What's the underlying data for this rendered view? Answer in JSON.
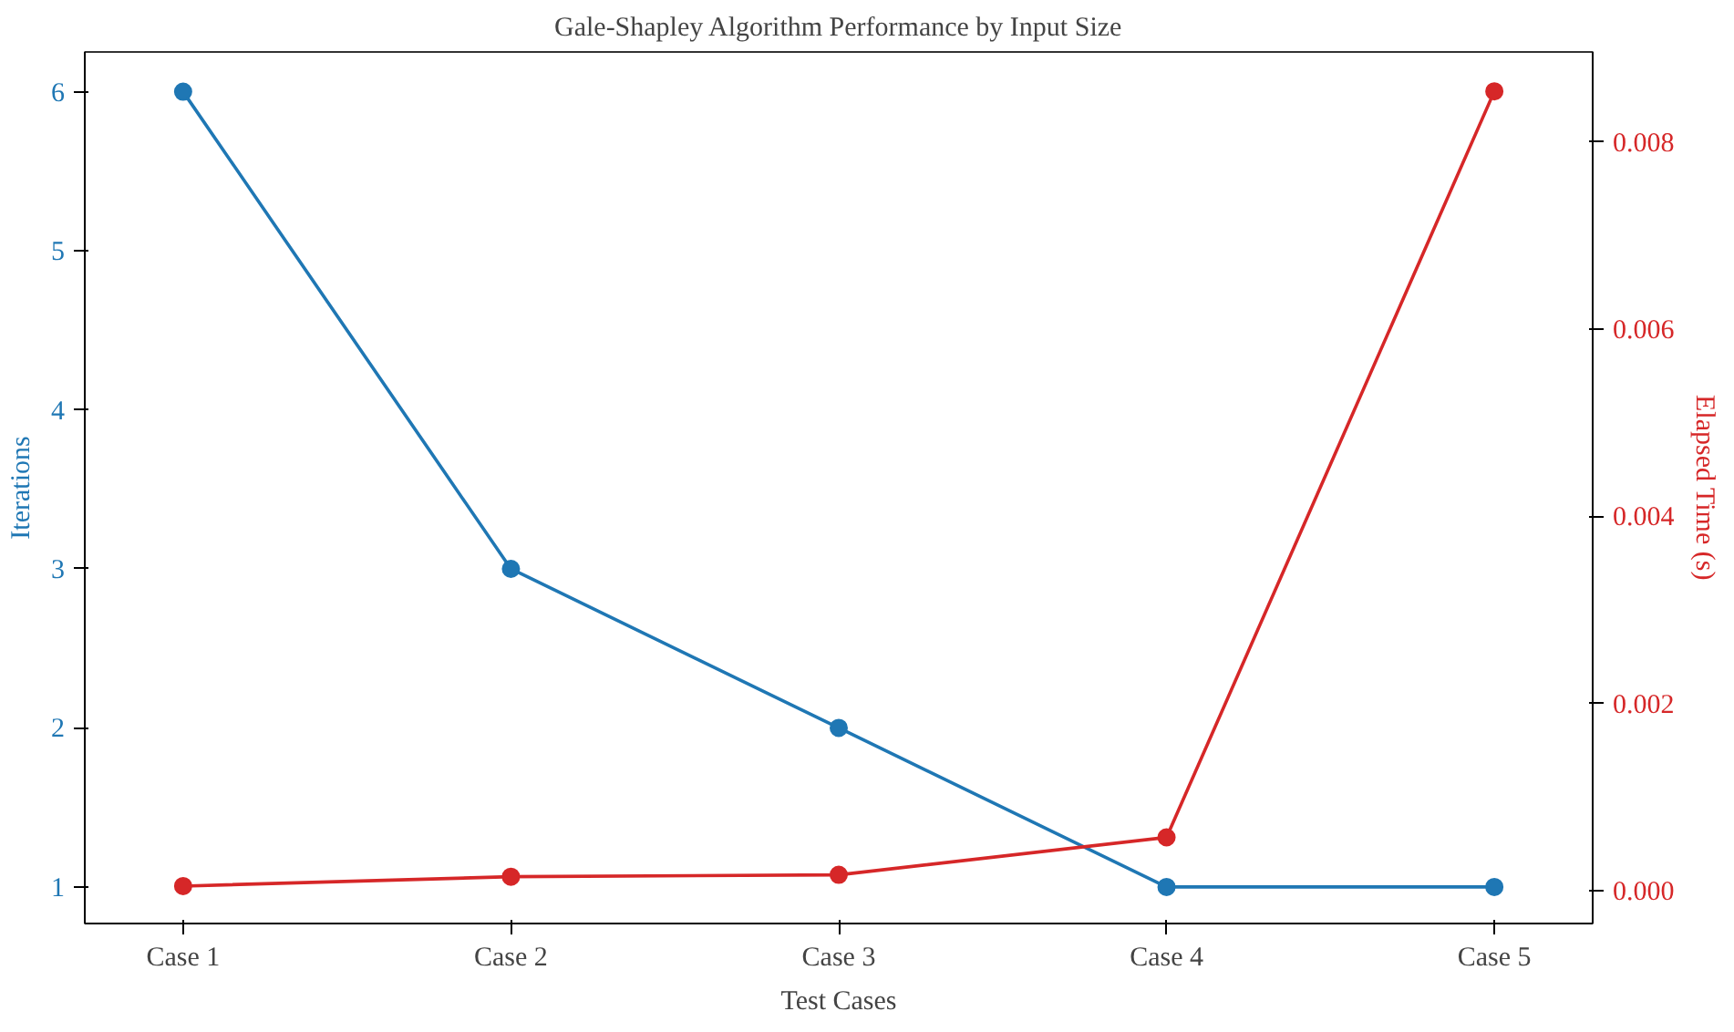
{
  "chart_data": {
    "type": "line",
    "title": "Gale-Shapley Algorithm Performance by Input Size",
    "xlabel": "Test Cases",
    "ylabel": "Iterations",
    "y2label": "Elapsed Time (s)",
    "categories": [
      "Case 1",
      "Case 2",
      "Case 3",
      "Case 4",
      "Case 5"
    ],
    "series": [
      {
        "color": "#1f77b4",
        "values": [
          6,
          3,
          2,
          1,
          1
        ]
      },
      {
        "color": "#d62728",
        "values": [
          5e-05,
          0.00015,
          0.00017,
          0.00057,
          0.00854
        ],
        "axis": "y2"
      }
    ],
    "ylim": [
      0.77,
      6.25
    ],
    "yticks": [
      1,
      2,
      3,
      4,
      5,
      6
    ],
    "y2lim": [
      -0.00035,
      0.00896
    ],
    "y2ticks": [
      {
        "value": 0,
        "label": "0.000"
      },
      {
        "value": 0.002,
        "label": "0.002"
      },
      {
        "value": 0.004,
        "label": "0.004"
      },
      {
        "value": 0.006,
        "label": "0.006"
      },
      {
        "value": 0.008,
        "label": "0.008"
      }
    ],
    "marker": "circle",
    "grid": false
  }
}
